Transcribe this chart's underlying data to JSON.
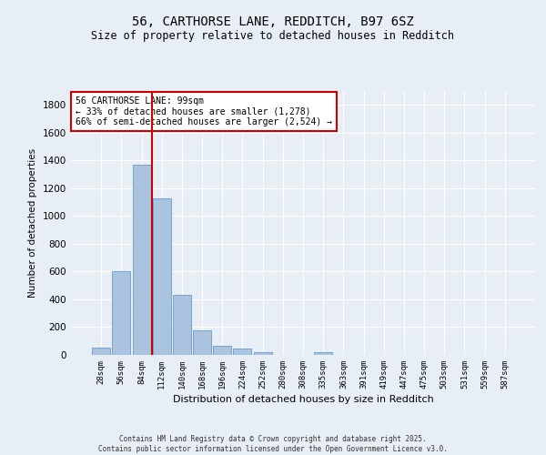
{
  "title_line1": "56, CARTHORSE LANE, REDDITCH, B97 6SZ",
  "title_line2": "Size of property relative to detached houses in Redditch",
  "xlabel": "Distribution of detached houses by size in Redditch",
  "ylabel": "Number of detached properties",
  "categories": [
    "28sqm",
    "56sqm",
    "84sqm",
    "112sqm",
    "140sqm",
    "168sqm",
    "196sqm",
    "224sqm",
    "252sqm",
    "280sqm",
    "308sqm",
    "335sqm",
    "363sqm",
    "391sqm",
    "419sqm",
    "447sqm",
    "475sqm",
    "503sqm",
    "531sqm",
    "559sqm",
    "587sqm"
  ],
  "values": [
    55,
    600,
    1370,
    1130,
    430,
    175,
    65,
    45,
    18,
    0,
    0,
    18,
    0,
    0,
    0,
    0,
    0,
    0,
    0,
    0,
    0
  ],
  "bar_color": "#aac4df",
  "bar_edge_color": "#6699cc",
  "vline_x": 2.5,
  "vline_color": "#cc0000",
  "annotation_text": "56 CARTHORSE LANE: 99sqm\n← 33% of detached houses are smaller (1,278)\n66% of semi-detached houses are larger (2,524) →",
  "annotation_box_color": "#ffffff",
  "annotation_box_edge": "#cc0000",
  "ylim": [
    0,
    1900
  ],
  "yticks": [
    0,
    200,
    400,
    600,
    800,
    1000,
    1200,
    1400,
    1600,
    1800
  ],
  "background_color": "#e8eef5",
  "grid_color": "#ffffff",
  "footer_line1": "Contains HM Land Registry data © Crown copyright and database right 2025.",
  "footer_line2": "Contains public sector information licensed under the Open Government Licence v3.0."
}
